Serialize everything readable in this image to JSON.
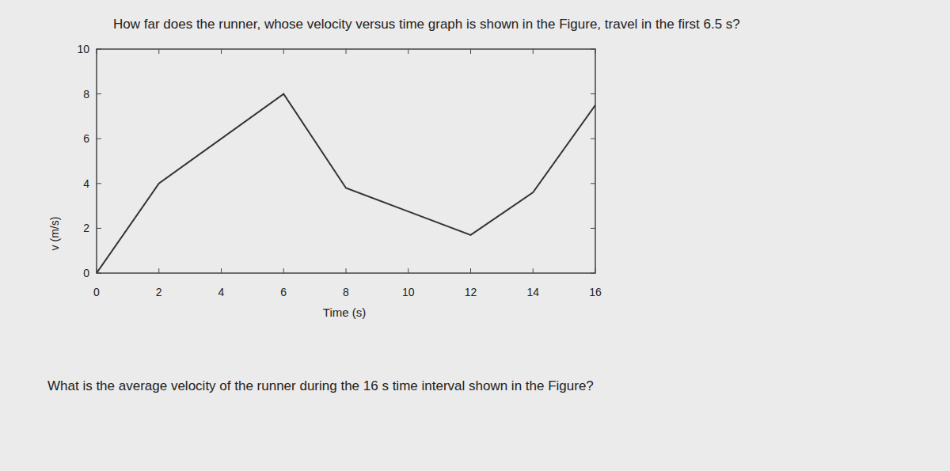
{
  "chart_data": {
    "type": "line",
    "title": "How far does the runner, whose velocity versus time graph is shown in the Figure, travel in the first 6.5 s?",
    "annotations": [
      "What is the average velocity of the runner during the 16 s time interval shown in the Figure?"
    ],
    "x_label": "Time (s)",
    "y_label": "v (m/s)",
    "x": [
      0,
      2,
      6,
      8,
      12,
      14,
      16
    ],
    "values": [
      0,
      4,
      8,
      3.8,
      1.7,
      3.6,
      7.5
    ],
    "color": "#333333",
    "xlim": [
      0,
      16
    ],
    "xticks": [
      0,
      2,
      4,
      6,
      8,
      10,
      12,
      14,
      16
    ],
    "ylim": [
      0,
      10
    ],
    "yticks": [
      0,
      2,
      4,
      6,
      8,
      10
    ],
    "grid": false
  }
}
